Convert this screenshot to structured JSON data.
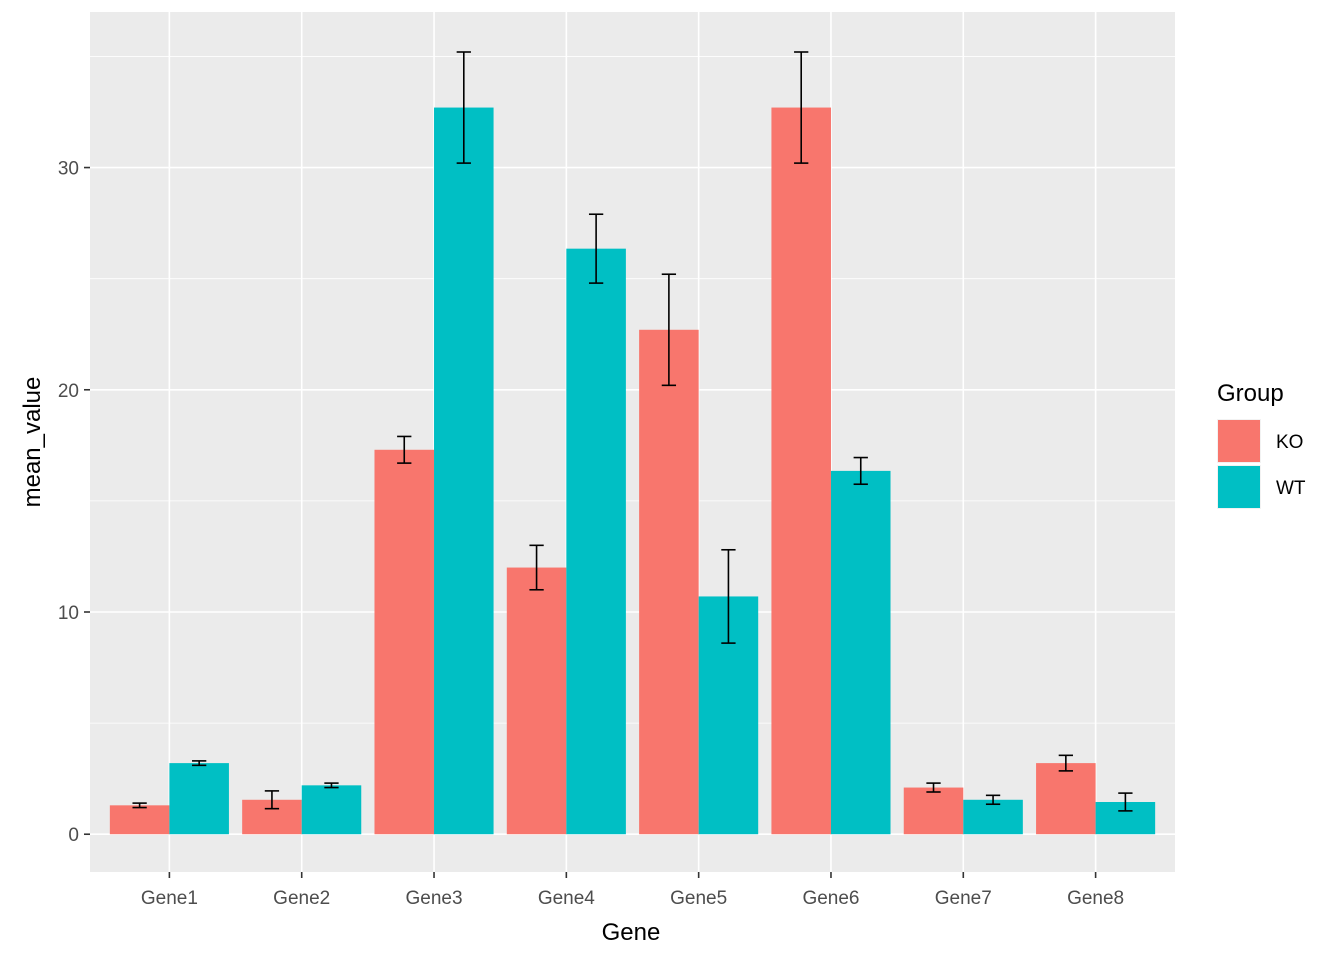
{
  "chart_data": {
    "type": "bar",
    "title": "",
    "xlabel": "Gene",
    "ylabel": "mean_value",
    "categories": [
      "Gene1",
      "Gene2",
      "Gene3",
      "Gene4",
      "Gene5",
      "Gene6",
      "Gene7",
      "Gene8"
    ],
    "ylim": [
      -1.7,
      37
    ],
    "yticks": [
      0,
      10,
      20,
      30
    ],
    "ytick_labels": [
      "0",
      "10",
      "20",
      "30"
    ],
    "grid": true,
    "legend": {
      "title": "Group",
      "position": "right"
    },
    "series": [
      {
        "name": "KO",
        "color": "#F8766D",
        "values": [
          1.3,
          1.55,
          17.3,
          12.0,
          22.7,
          32.7,
          2.1,
          3.2
        ],
        "errors": [
          0.1,
          0.4,
          0.6,
          1.0,
          2.5,
          2.5,
          0.2,
          0.35
        ]
      },
      {
        "name": "WT",
        "color": "#00BFC4",
        "values": [
          3.2,
          2.2,
          32.7,
          26.35,
          10.7,
          16.35,
          1.55,
          1.45
        ],
        "errors": [
          0.1,
          0.1,
          2.5,
          1.55,
          2.1,
          0.6,
          0.2,
          0.4
        ]
      }
    ]
  }
}
